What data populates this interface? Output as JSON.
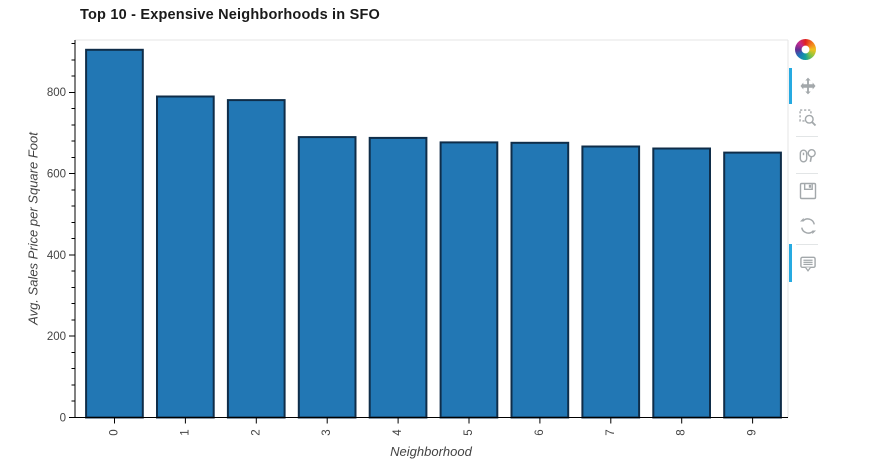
{
  "title": "Top 10 - Expensive Neighborhoods in SFO",
  "chart_data": {
    "type": "bar",
    "title": "Top 10 - Expensive Neighborhoods in SFO",
    "categories": [
      "0",
      "1",
      "2",
      "3",
      "4",
      "5",
      "6",
      "7",
      "8",
      "9"
    ],
    "values": [
      905,
      790,
      781,
      690,
      688,
      677,
      676,
      667,
      662,
      652
    ],
    "xlabel": "Neighborhood",
    "ylabel": "Avg. Sales Price per Square Foot",
    "ylim": [
      0,
      929
    ],
    "yticks": [
      0,
      200,
      400,
      600,
      800
    ],
    "x_tick_rotation_deg": -90,
    "grid": false,
    "legend_position": "none",
    "bar_fill_color": "#2277b4",
    "bar_line_color": "#0f2d49",
    "axis_line_color": "#000000",
    "tick_label_color": "#444444",
    "frame_outline_color": "#e5e5e5"
  },
  "toolbar": {
    "logo_name": "bokeh-logo",
    "active_color": "#26aae1",
    "icon_color": "#a3a8ab",
    "tools": [
      {
        "name": "pan",
        "active": true
      },
      {
        "name": "box-zoom",
        "active": false
      },
      {
        "name": "wheel-zoom",
        "active": false
      },
      {
        "name": "save",
        "active": false
      },
      {
        "name": "reset",
        "active": false
      },
      {
        "name": "hover",
        "active": true
      }
    ]
  }
}
